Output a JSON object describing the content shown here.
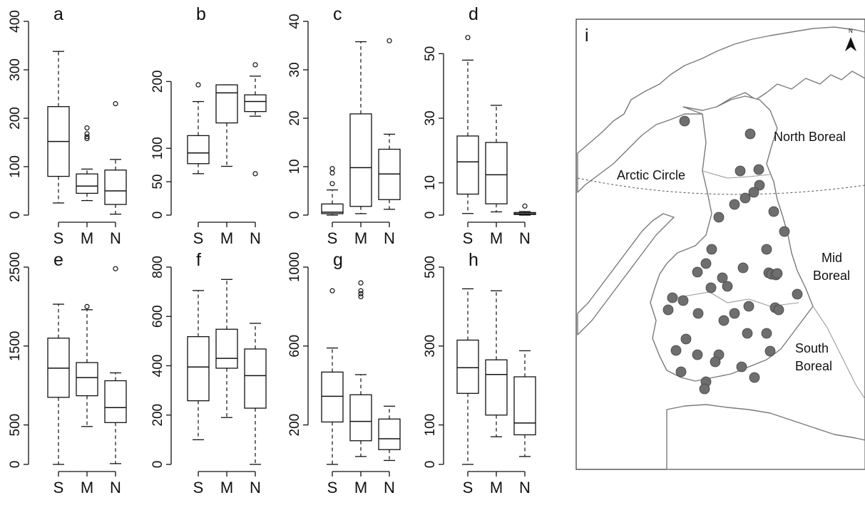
{
  "chart_data": [
    {
      "type": "box",
      "panel": "a",
      "categories": [
        "S",
        "M",
        "N"
      ],
      "ylim": [
        0,
        400
      ],
      "yticks": [
        0,
        100,
        200,
        300,
        400
      ],
      "boxes": [
        {
          "min": 25,
          "q1": 80,
          "median": 152,
          "q3": 224,
          "max": 338,
          "outliers": []
        },
        {
          "min": 30,
          "q1": 45,
          "median": 60,
          "q3": 85,
          "max": 95,
          "outliers": [
            158,
            162,
            168,
            180
          ]
        },
        {
          "min": 2,
          "q1": 22,
          "median": 50,
          "q3": 93,
          "max": 115,
          "outliers": [
            230
          ]
        }
      ]
    },
    {
      "type": "box",
      "panel": "b",
      "categories": [
        "S",
        "M",
        "N"
      ],
      "ylim": [
        0,
        290
      ],
      "yticks": [
        0,
        50,
        100,
        200
      ],
      "boxes": [
        {
          "min": 62,
          "q1": 77,
          "median": 93,
          "q3": 119,
          "max": 170,
          "outliers": [
            195
          ]
        },
        {
          "min": 73,
          "q1": 138,
          "median": 183,
          "q3": 195,
          "max": 195,
          "outliers": []
        },
        {
          "min": 148,
          "q1": 155,
          "median": 170,
          "q3": 180,
          "max": 208,
          "outliers": [
            62,
            225
          ]
        }
      ]
    },
    {
      "type": "box",
      "panel": "c",
      "categories": [
        "S",
        "M",
        "N"
      ],
      "ylim": [
        0,
        40
      ],
      "yticks": [
        0,
        10,
        20,
        30,
        40
      ],
      "boxes": [
        {
          "min": 0,
          "q1": 0.3,
          "median": 0.6,
          "q3": 2.3,
          "max": 5.2,
          "outliers": [
            6.5,
            8.7,
            9.6
          ]
        },
        {
          "min": 0.3,
          "q1": 1.8,
          "median": 9.8,
          "q3": 20.9,
          "max": 35.8,
          "outliers": []
        },
        {
          "min": 1.2,
          "q1": 3.2,
          "median": 8.5,
          "q3": 13.6,
          "max": 16.7,
          "outliers": [
            36
          ]
        }
      ]
    },
    {
      "type": "box",
      "panel": "d",
      "categories": [
        "S",
        "M",
        "N"
      ],
      "ylim": [
        0,
        60
      ],
      "yticks": [
        0,
        10,
        30,
        50
      ],
      "boxes": [
        {
          "min": 0.5,
          "q1": 6.5,
          "median": 16.5,
          "q3": 24.5,
          "max": 48,
          "outliers": [
            55
          ]
        },
        {
          "min": 1,
          "q1": 3.5,
          "median": 12.5,
          "q3": 22.5,
          "max": 34,
          "outliers": []
        },
        {
          "min": 0,
          "q1": 0.2,
          "median": 0.4,
          "q3": 0.8,
          "max": 1.1,
          "outliers": [
            2.8
          ]
        }
      ]
    },
    {
      "type": "box",
      "panel": "e",
      "categories": [
        "S",
        "M",
        "N"
      ],
      "ylim": [
        0,
        2500
      ],
      "yticks": [
        0,
        500,
        1500,
        2500
      ],
      "boxes": [
        {
          "min": 0,
          "q1": 850,
          "median": 1220,
          "q3": 1600,
          "max": 2030,
          "outliers": []
        },
        {
          "min": 480,
          "q1": 870,
          "median": 1100,
          "q3": 1290,
          "max": 1960,
          "outliers": [
            2000
          ]
        },
        {
          "min": 10,
          "q1": 530,
          "median": 720,
          "q3": 1060,
          "max": 1160,
          "outliers": [
            2480
          ]
        }
      ]
    },
    {
      "type": "box",
      "panel": "f",
      "categories": [
        "S",
        "M",
        "N"
      ],
      "ylim": [
        0,
        800
      ],
      "yticks": [
        0,
        200,
        400,
        600,
        800
      ],
      "boxes": [
        {
          "min": 100,
          "q1": 258,
          "median": 395,
          "q3": 518,
          "max": 705,
          "outliers": []
        },
        {
          "min": 190,
          "q1": 390,
          "median": 430,
          "q3": 548,
          "max": 750,
          "outliers": []
        },
        {
          "min": 0,
          "q1": 228,
          "median": 360,
          "q3": 468,
          "max": 572,
          "outliers": []
        }
      ]
    },
    {
      "type": "box",
      "panel": "g",
      "categories": [
        "S",
        "M",
        "N"
      ],
      "ylim": [
        0,
        1000
      ],
      "yticks": [
        200,
        600,
        1000
      ],
      "boxes": [
        {
          "min": 0,
          "q1": 215,
          "median": 345,
          "q3": 468,
          "max": 590,
          "outliers": [
            880
          ]
        },
        {
          "min": 40,
          "q1": 120,
          "median": 218,
          "q3": 353,
          "max": 455,
          "outliers": [
            850,
            865,
            880,
            920
          ]
        },
        {
          "min": 20,
          "q1": 75,
          "median": 130,
          "q3": 230,
          "max": 295,
          "outliers": []
        }
      ]
    },
    {
      "type": "box",
      "panel": "h",
      "categories": [
        "S",
        "M",
        "N"
      ],
      "ylim": [
        0,
        500
      ],
      "yticks": [
        0,
        100,
        300,
        500
      ],
      "boxes": [
        {
          "min": 0,
          "q1": 180,
          "median": 245,
          "q3": 315,
          "max": 445,
          "outliers": []
        },
        {
          "min": 70,
          "q1": 125,
          "median": 228,
          "q3": 265,
          "max": 440,
          "outliers": []
        },
        {
          "min": 20,
          "q1": 75,
          "median": 105,
          "q3": 222,
          "max": 288,
          "outliers": []
        }
      ]
    }
  ],
  "map": {
    "panel": "i",
    "north_label": "N",
    "labels": {
      "north_boreal": "North Boreal",
      "arctic_circle": "Arctic Circle",
      "mid_boreal": [
        "Mid",
        "Boreal"
      ],
      "south_boreal": [
        "South",
        "Boreal"
      ]
    },
    "colors": {
      "sites": "#6e6e6e",
      "land_outline": "#7a7a7a"
    }
  }
}
